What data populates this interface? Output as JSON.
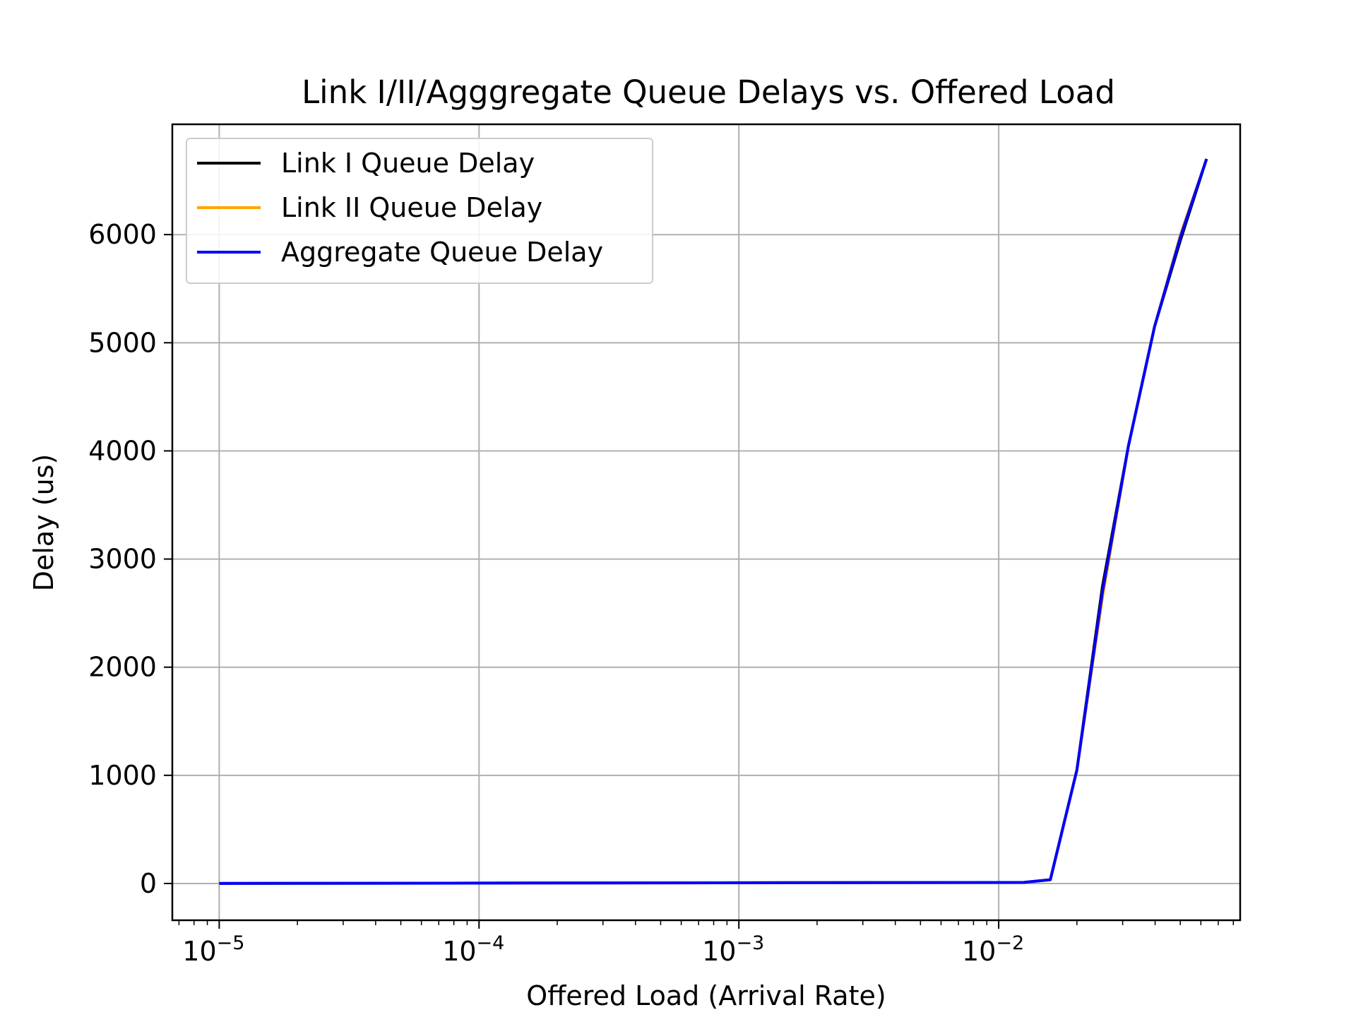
{
  "chart_data": {
    "type": "line",
    "title": "Link I/II/Agggregate Queue Delays vs. Offered Load",
    "xlabel": "Offered Load (Arrival Rate)",
    "ylabel": "Delay (us)",
    "x_scale": "log",
    "xlim": [
      6.6e-06,
      0.085
    ],
    "ylim": [
      -340,
      7020
    ],
    "x_ticks": [
      {
        "value": 1e-05,
        "base": "10",
        "exp": "−5"
      },
      {
        "value": 0.0001,
        "base": "10",
        "exp": "−4"
      },
      {
        "value": 0.001,
        "base": "10",
        "exp": "−3"
      },
      {
        "value": 0.01,
        "base": "10",
        "exp": "−2"
      }
    ],
    "y_ticks": [
      {
        "value": 0,
        "label": "0"
      },
      {
        "value": 1000,
        "label": "1000"
      },
      {
        "value": 2000,
        "label": "2000"
      },
      {
        "value": 3000,
        "label": "3000"
      },
      {
        "value": 4000,
        "label": "4000"
      },
      {
        "value": 5000,
        "label": "5000"
      },
      {
        "value": 6000,
        "label": "6000"
      }
    ],
    "grid": true,
    "legend_position": "upper-left",
    "x": [
      1e-05,
      0.0125,
      0.0158,
      0.02,
      0.0251,
      0.0316,
      0.0398,
      0.0501,
      0.0631
    ],
    "series": [
      {
        "name": "Link I Queue Delay",
        "color": "#000000",
        "values": [
          0,
          10,
          35,
          1050,
          2750,
          4050,
          5150,
          5950,
          6700
        ]
      },
      {
        "name": "Link II Queue Delay",
        "color": "#ffa500",
        "values": [
          0,
          10,
          35,
          1050,
          2650,
          4050,
          5150,
          6000,
          6700
        ]
      },
      {
        "name": "Aggregate Queue Delay",
        "color": "#0000ff",
        "values": [
          0,
          10,
          35,
          1050,
          2700,
          4050,
          5150,
          5980,
          6700
        ]
      }
    ]
  }
}
